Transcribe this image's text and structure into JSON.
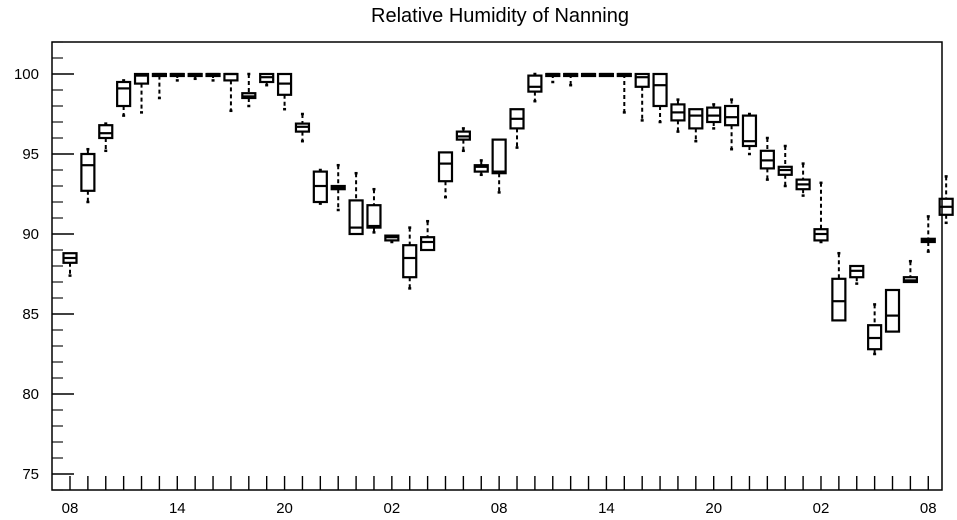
{
  "chart_data": {
    "type": "box",
    "title": "Relative Humidity of Nanning",
    "xlabel": "",
    "ylabel": "",
    "ylim": [
      74,
      102
    ],
    "xlim": [
      0,
      48.6
    ],
    "grid": false,
    "y_ticks": [
      75,
      80,
      85,
      90,
      95,
      100
    ],
    "x_tick_labels": [
      {
        "x": 0,
        "label": "08"
      },
      {
        "x": 6,
        "label": "14"
      },
      {
        "x": 12,
        "label": "20"
      },
      {
        "x": 18,
        "label": "02"
      },
      {
        "x": 24,
        "label": "08"
      },
      {
        "x": 30,
        "label": "14"
      },
      {
        "x": 36,
        "label": "20"
      },
      {
        "x": 42,
        "label": "02"
      },
      {
        "x": 48,
        "label": "08"
      }
    ],
    "series": [
      {
        "boxes": [
          {
            "x": 0,
            "q1": 88.2,
            "median": 88.5,
            "q3": 88.8,
            "low": 87.4,
            "high": 88.8
          },
          {
            "x": 1,
            "q1": 92.7,
            "median": 94.3,
            "q3": 95.0,
            "low": 92.0,
            "high": 95.3
          },
          {
            "x": 2,
            "q1": 96.0,
            "median": 96.3,
            "q3": 96.8,
            "low": 95.2,
            "high": 96.9
          },
          {
            "x": 3,
            "q1": 98.0,
            "median": 99.1,
            "q3": 99.5,
            "low": 97.4,
            "high": 99.6
          },
          {
            "x": 4,
            "q1": 99.4,
            "median": 99.9,
            "q3": 100.0,
            "low": 97.6,
            "high": 100.0
          },
          {
            "x": 5,
            "q1": 99.9,
            "median": 100.0,
            "q3": 100.0,
            "low": 98.5,
            "high": 100.0
          },
          {
            "x": 6,
            "q1": 100.0,
            "median": 100.0,
            "q3": 100.0,
            "low": 99.6,
            "high": 100.0
          },
          {
            "x": 7,
            "q1": 100.0,
            "median": 100.0,
            "q3": 100.0,
            "low": 99.7,
            "high": 100.0
          },
          {
            "x": 8,
            "q1": 100.0,
            "median": 100.0,
            "q3": 100.0,
            "low": 99.6,
            "high": 100.0
          },
          {
            "x": 9,
            "q1": 99.6,
            "median": 100.0,
            "q3": 100.0,
            "low": 97.7,
            "high": 100.0
          },
          {
            "x": 10,
            "q1": 98.5,
            "median": 98.6,
            "q3": 98.8,
            "low": 98.0,
            "high": 100.0
          },
          {
            "x": 11,
            "q1": 99.5,
            "median": 99.8,
            "q3": 100.0,
            "low": 99.3,
            "high": 100.0
          },
          {
            "x": 12,
            "q1": 98.7,
            "median": 99.4,
            "q3": 100.0,
            "low": 97.8,
            "high": 100.0
          },
          {
            "x": 13,
            "q1": 96.4,
            "median": 96.7,
            "q3": 96.9,
            "low": 95.8,
            "high": 97.5
          },
          {
            "x": 14,
            "q1": 92.0,
            "median": 93.0,
            "q3": 93.9,
            "low": 91.9,
            "high": 94.0
          },
          {
            "x": 15,
            "q1": 92.8,
            "median": 92.9,
            "q3": 93.0,
            "low": 91.5,
            "high": 94.3
          },
          {
            "x": 16,
            "q1": 90.0,
            "median": 90.4,
            "q3": 92.1,
            "low": 90.0,
            "high": 93.8
          },
          {
            "x": 17,
            "q1": 90.4,
            "median": 90.5,
            "q3": 91.8,
            "low": 90.1,
            "high": 92.8
          },
          {
            "x": 18,
            "q1": 89.6,
            "median": 89.8,
            "q3": 89.9,
            "low": 89.5,
            "high": 89.9
          },
          {
            "x": 19,
            "q1": 87.3,
            "median": 88.5,
            "q3": 89.3,
            "low": 86.6,
            "high": 90.4
          },
          {
            "x": 20,
            "q1": 89.0,
            "median": 89.5,
            "q3": 89.8,
            "low": 89.0,
            "high": 90.8
          },
          {
            "x": 21,
            "q1": 93.3,
            "median": 94.4,
            "q3": 95.1,
            "low": 92.3,
            "high": 95.1
          },
          {
            "x": 22,
            "q1": 95.9,
            "median": 96.1,
            "q3": 96.4,
            "low": 95.2,
            "high": 96.6
          },
          {
            "x": 23,
            "q1": 93.9,
            "median": 94.2,
            "q3": 94.3,
            "low": 93.7,
            "high": 94.6
          },
          {
            "x": 24,
            "q1": 93.8,
            "median": 93.9,
            "q3": 95.9,
            "low": 92.6,
            "high": 95.9
          },
          {
            "x": 25,
            "q1": 96.6,
            "median": 97.2,
            "q3": 97.8,
            "low": 95.4,
            "high": 97.8
          },
          {
            "x": 26,
            "q1": 98.9,
            "median": 99.2,
            "q3": 99.9,
            "low": 98.3,
            "high": 100.0
          },
          {
            "x": 27,
            "q1": 100.0,
            "median": 100.0,
            "q3": 100.0,
            "low": 99.5,
            "high": 100.0
          },
          {
            "x": 28,
            "q1": 100.0,
            "median": 100.0,
            "q3": 100.0,
            "low": 99.3,
            "high": 100.0
          },
          {
            "x": 29,
            "q1": 100.0,
            "median": 100.0,
            "q3": 100.0,
            "low": 100.0,
            "high": 100.0
          },
          {
            "x": 30,
            "q1": 100.0,
            "median": 100.0,
            "q3": 100.0,
            "low": 100.0,
            "high": 100.0
          },
          {
            "x": 31,
            "q1": 100.0,
            "median": 100.0,
            "q3": 100.0,
            "low": 97.6,
            "high": 100.0
          },
          {
            "x": 32,
            "q1": 99.2,
            "median": 99.8,
            "q3": 100.0,
            "low": 97.1,
            "high": 100.0
          },
          {
            "x": 33,
            "q1": 98.0,
            "median": 99.3,
            "q3": 100.0,
            "low": 97.0,
            "high": 100.0
          },
          {
            "x": 34,
            "q1": 97.1,
            "median": 97.6,
            "q3": 98.1,
            "low": 96.4,
            "high": 98.4
          },
          {
            "x": 35,
            "q1": 96.6,
            "median": 97.4,
            "q3": 97.8,
            "low": 95.8,
            "high": 97.8
          },
          {
            "x": 36,
            "q1": 97.0,
            "median": 97.4,
            "q3": 97.9,
            "low": 96.6,
            "high": 98.1
          },
          {
            "x": 37,
            "q1": 96.8,
            "median": 97.3,
            "q3": 98.0,
            "low": 95.3,
            "high": 98.4
          },
          {
            "x": 38,
            "q1": 95.5,
            "median": 95.8,
            "q3": 97.4,
            "low": 95.0,
            "high": 97.5
          },
          {
            "x": 39,
            "q1": 94.1,
            "median": 94.6,
            "q3": 95.2,
            "low": 93.4,
            "high": 96.0
          },
          {
            "x": 40,
            "q1": 93.7,
            "median": 94.0,
            "q3": 94.2,
            "low": 93.0,
            "high": 95.5
          },
          {
            "x": 41,
            "q1": 92.8,
            "median": 93.1,
            "q3": 93.4,
            "low": 92.4,
            "high": 94.4
          },
          {
            "x": 42,
            "q1": 89.6,
            "median": 90.0,
            "q3": 90.3,
            "low": 89.5,
            "high": 93.2
          },
          {
            "x": 43,
            "q1": 84.6,
            "median": 85.8,
            "q3": 87.2,
            "low": 84.6,
            "high": 88.8
          },
          {
            "x": 44,
            "q1": 87.3,
            "median": 87.7,
            "q3": 88.0,
            "low": 86.9,
            "high": 88.0
          },
          {
            "x": 45,
            "q1": 82.8,
            "median": 83.5,
            "q3": 84.3,
            "low": 82.5,
            "high": 85.6
          },
          {
            "x": 46,
            "q1": 83.9,
            "median": 84.9,
            "q3": 86.5,
            "low": 83.9,
            "high": 86.5
          },
          {
            "x": 47,
            "q1": 87.0,
            "median": 87.1,
            "q3": 87.3,
            "low": 87.0,
            "high": 88.3
          },
          {
            "x": 48,
            "q1": 89.5,
            "median": 89.6,
            "q3": 89.7,
            "low": 88.9,
            "high": 91.1
          },
          {
            "x": 49,
            "q1": 91.2,
            "median": 91.7,
            "q3": 92.2,
            "low": 90.7,
            "high": 93.6
          }
        ]
      }
    ]
  }
}
